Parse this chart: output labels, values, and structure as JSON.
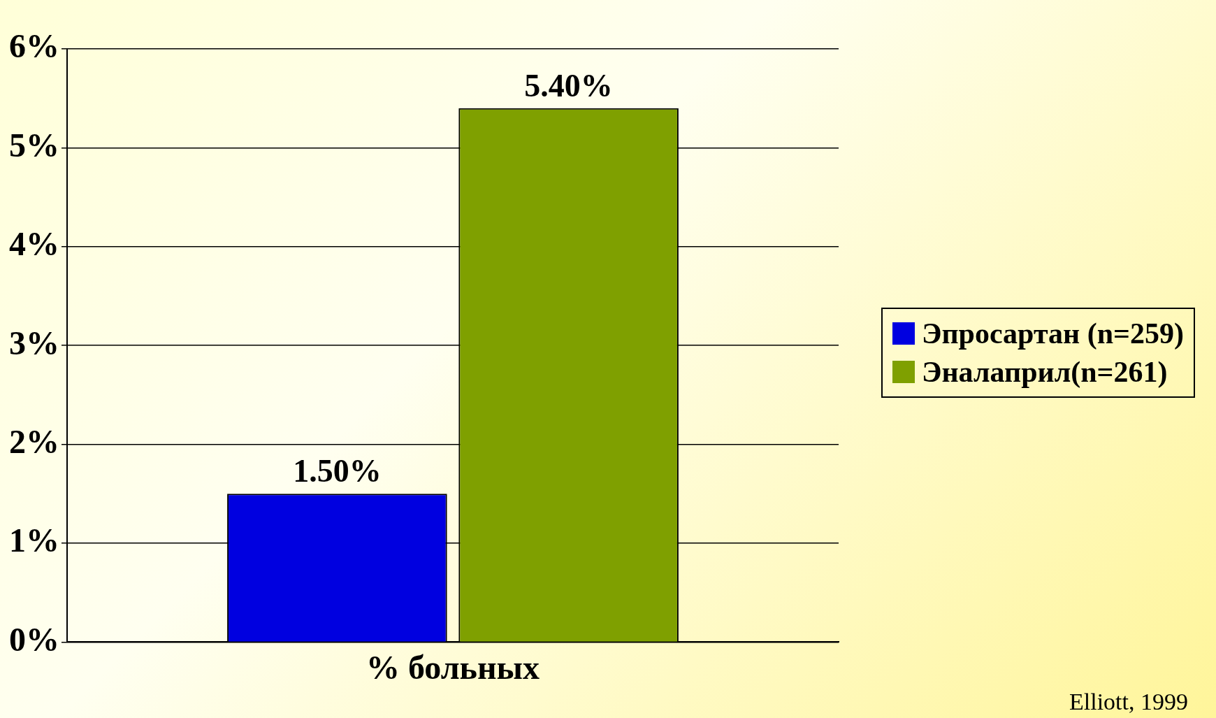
{
  "chart_data": {
    "type": "bar",
    "categories": [
      "% больных"
    ],
    "series": [
      {
        "name": "Эпросартан (n=259)",
        "color": "#0000e0",
        "values": [
          1.5
        ],
        "value_labels": [
          "1.50%"
        ]
      },
      {
        "name": "Эналаприл(n=261)",
        "color": "#7fa000",
        "values": [
          5.4
        ],
        "value_labels": [
          "5.40%"
        ]
      }
    ],
    "ylim": [
      0,
      6
    ],
    "yticks": [
      {
        "value": 0,
        "label": "0%"
      },
      {
        "value": 1,
        "label": "1%"
      },
      {
        "value": 2,
        "label": "2%"
      },
      {
        "value": 3,
        "label": "3%"
      },
      {
        "value": 4,
        "label": "4%"
      },
      {
        "value": 5,
        "label": "5%"
      },
      {
        "value": 6,
        "label": "6%"
      }
    ],
    "grid": "y",
    "legend": "right",
    "annotations": [
      "Elliott, 1999"
    ]
  }
}
